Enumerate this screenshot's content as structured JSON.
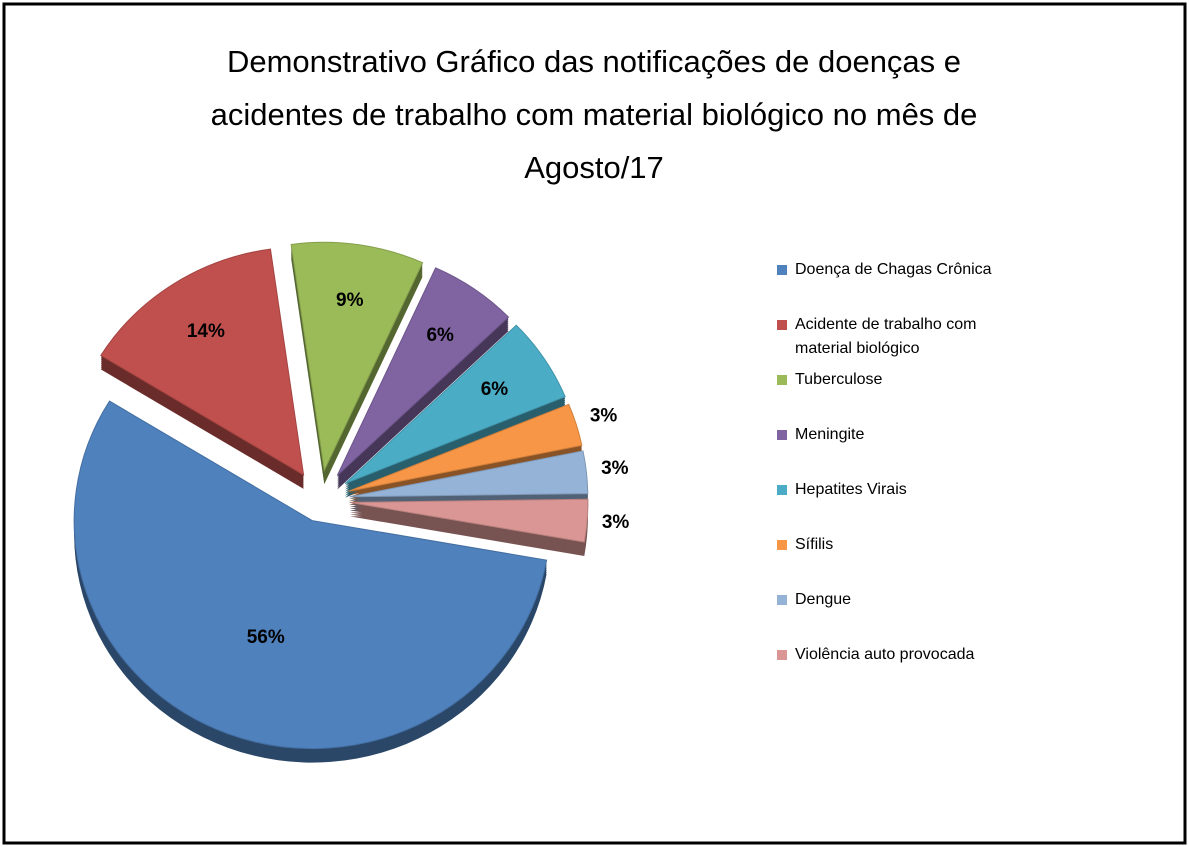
{
  "chart_data": {
    "type": "pie",
    "title": [
      "Demonstrativo Gráfico das notificações  de doenças e",
      "acidentes de trabalho com material biológico no mês de",
      "Agosto/17"
    ],
    "categories": [
      "Doença de Chagas Crônica",
      "Acidente de trabalho com material biológico",
      "Tuberculose",
      "Meningite",
      "Hepatites Virais",
      "Sífilis",
      "Dengue",
      "Violência auto provocada"
    ],
    "values": [
      56,
      14,
      9,
      6,
      6,
      3,
      3,
      3
    ],
    "value_labels": [
      "56%",
      "14%",
      "9%",
      "6%",
      "6%",
      "3%",
      "3%",
      "3%"
    ],
    "colors": [
      "#4f81bd",
      "#c0504d",
      "#9bbb59",
      "#8064a2",
      "#4bacc6",
      "#f79646",
      "#95b3d7",
      "#d99694"
    ],
    "legend": "right"
  }
}
